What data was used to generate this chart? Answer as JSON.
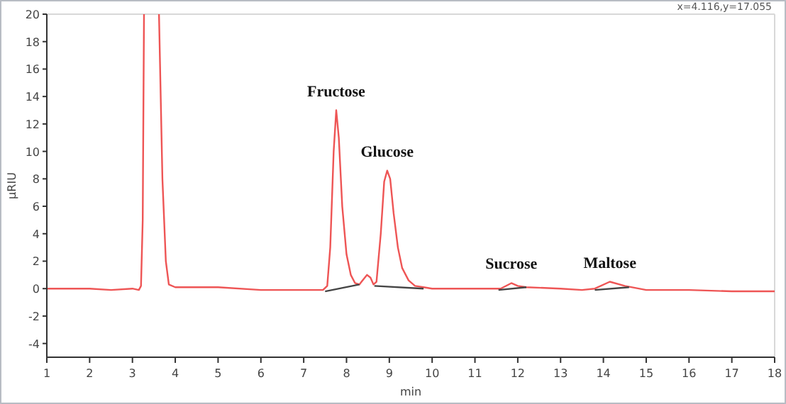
{
  "chart_data": {
    "type": "line",
    "xlabel": "min",
    "ylabel": "µRIU",
    "xlim": [
      1,
      18
    ],
    "xticks": [
      1,
      2,
      3,
      4,
      5,
      6,
      7,
      8,
      9,
      10,
      11,
      12,
      13,
      14,
      15,
      16,
      17,
      18
    ],
    "ylim": [
      -5,
      20
    ],
    "yticks": [
      -4,
      -2,
      0,
      2,
      4,
      6,
      8,
      10,
      12,
      14,
      16,
      18,
      20
    ],
    "grid": false,
    "marker": "none",
    "line_style": "solid",
    "series": [
      {
        "color": "#ee5555",
        "x": [
          1,
          2,
          2.5,
          3,
          3.15,
          3.2,
          3.24,
          3.27,
          3.45,
          3.62,
          3.7,
          3.78,
          3.85,
          4,
          5,
          6,
          7,
          7.45,
          7.55,
          7.62,
          7.7,
          7.76,
          7.82,
          7.9,
          8.0,
          8.1,
          8.2,
          8.3,
          8.4,
          8.48,
          8.56,
          8.63,
          8.7,
          8.8,
          8.88,
          8.95,
          9.02,
          9.1,
          9.2,
          9.3,
          9.45,
          9.6,
          9.8,
          10,
          11,
          11.6,
          11.85,
          12.0,
          12.2,
          13,
          13.5,
          13.8,
          14.15,
          14.5,
          15,
          16,
          17,
          18
        ],
        "values": [
          0,
          0,
          -0.1,
          0,
          -0.1,
          0.2,
          5,
          20,
          null,
          20,
          8,
          2,
          0.3,
          0.1,
          0.1,
          -0.1,
          -0.1,
          -0.1,
          0.2,
          3,
          10,
          13,
          11,
          6,
          2.5,
          1.0,
          0.4,
          0.3,
          0.7,
          1.0,
          0.8,
          0.3,
          0.5,
          4,
          7.8,
          8.6,
          8,
          5.5,
          3,
          1.5,
          0.6,
          0.2,
          0.1,
          0,
          0,
          0,
          0.4,
          0.2,
          0.1,
          0,
          -0.1,
          0,
          0.5,
          0.2,
          -0.1,
          -0.1,
          -0.2,
          -0.2
        ]
      },
      {
        "color": "#444444",
        "x": [
          7.5,
          8.3
        ],
        "values": [
          -0.2,
          0.3
        ]
      },
      {
        "color": "#444444",
        "x": [
          8.65,
          9.8
        ],
        "values": [
          0.2,
          0
        ]
      },
      {
        "color": "#444444",
        "x": [
          11.55,
          12.2
        ],
        "values": [
          -0.1,
          0.1
        ]
      },
      {
        "color": "#444444",
        "x": [
          13.8,
          14.6
        ],
        "values": [
          -0.1,
          0.1
        ]
      }
    ],
    "annotations": [
      {
        "text": "Fructose",
        "x": 7.76,
        "y": 13
      },
      {
        "text": "Glucose",
        "x": 8.95,
        "y": 8.6
      },
      {
        "text": "Sucrose",
        "x": 11.85,
        "y": 0.4
      },
      {
        "text": "Maltose",
        "x": 14.15,
        "y": 0.5
      },
      "x=4.116,y=17.055"
    ]
  }
}
